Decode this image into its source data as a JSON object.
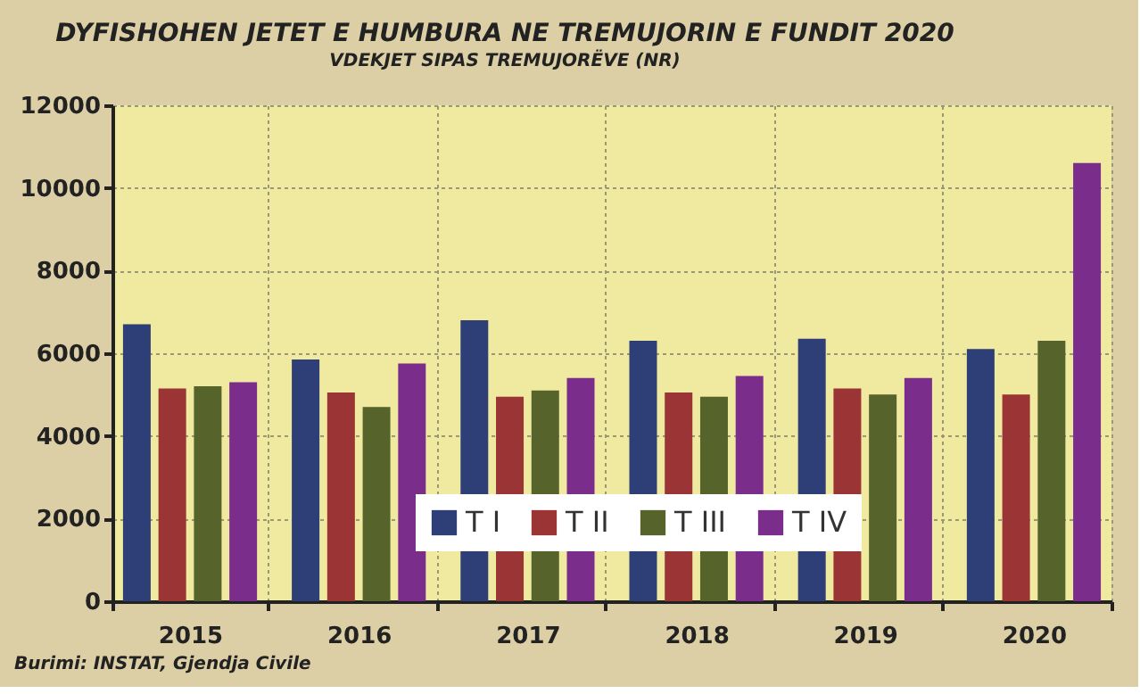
{
  "chart_data": {
    "type": "bar",
    "title": "DYFISHOHEN JETET E HUMBURA NE TREMUJORIN E FUNDIT 2020",
    "subtitle": "VDEKJET SIPAS TREMUJORËVE (NR)",
    "categories": [
      "2015",
      "2016",
      "2017",
      "2018",
      "2019",
      "2020"
    ],
    "series": [
      {
        "name": "T I",
        "color": "#2e3f78",
        "values": [
          6700,
          5850,
          6800,
          6300,
          6350,
          6100
        ]
      },
      {
        "name": "T II",
        "color": "#9b3434",
        "values": [
          5150,
          5050,
          4950,
          5050,
          5150,
          5000
        ]
      },
      {
        "name": "T III",
        "color": "#56632a",
        "values": [
          5200,
          4700,
          5100,
          4950,
          5000,
          6300
        ]
      },
      {
        "name": "T IV",
        "color": "#7b2d8b",
        "values": [
          5300,
          5750,
          5400,
          5450,
          5400,
          10600
        ]
      }
    ],
    "ylim": [
      0,
      12000
    ],
    "yticks": [
      0,
      2000,
      4000,
      6000,
      8000,
      10000,
      12000
    ],
    "grid": true,
    "legend": "bottom",
    "annotations": [
      "Burimi: INSTAT, Gjendja Civile"
    ]
  }
}
